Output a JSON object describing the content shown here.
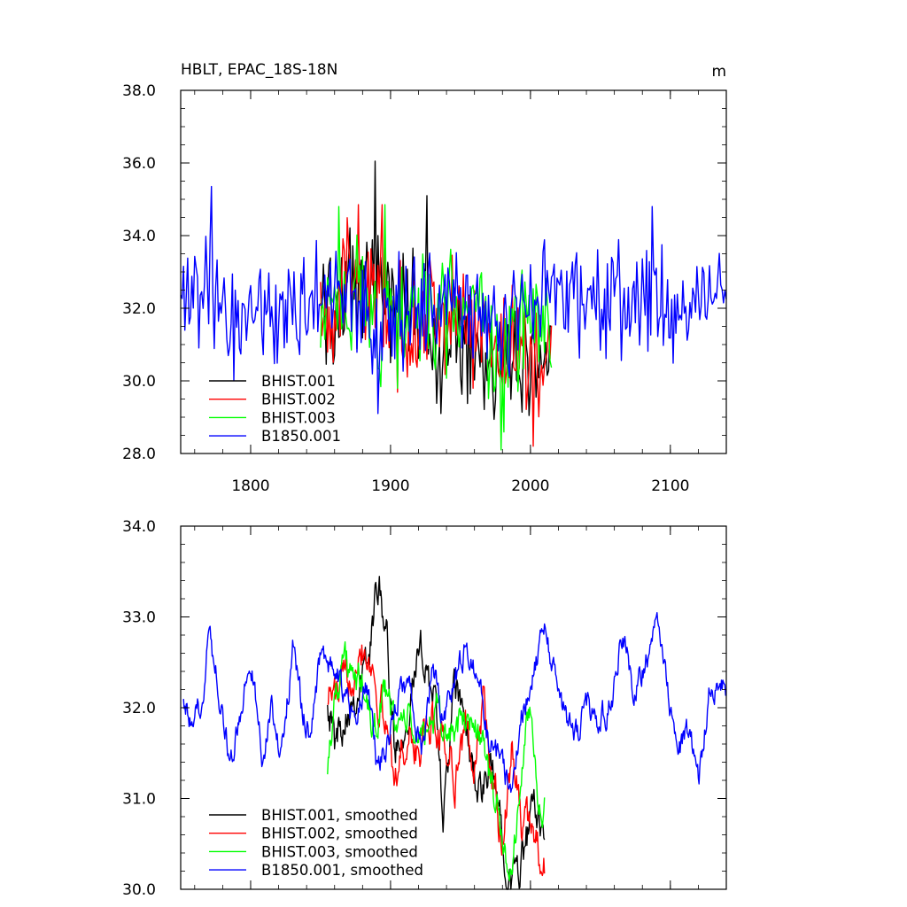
{
  "chart_data": [
    {
      "type": "line",
      "title": "HBLT, EPAC_18S-18N",
      "units": "m",
      "xlim": [
        1750,
        2140
      ],
      "ylim": [
        28,
        38
      ],
      "yticks": [
        "28.0",
        "30.0",
        "32.0",
        "34.0",
        "36.0",
        "38.0"
      ],
      "xticks": [
        "1800",
        "1900",
        "2000",
        "2100"
      ],
      "legend_position": "bottom-left",
      "series": [
        {
          "name": "BHIST.001",
          "color": "#000000",
          "x_start": 1850,
          "x_end": 2015,
          "anchors_x": [
            1850,
            1860,
            1870,
            1880,
            1888,
            1895,
            1905,
            1915,
            1925,
            1935,
            1945,
            1955,
            1965,
            1975,
            1985,
            1995,
            2005,
            2015
          ],
          "anchors_y": [
            32.2,
            32.0,
            32.4,
            32.6,
            33.2,
            32.5,
            31.8,
            31.9,
            32.2,
            30.5,
            31.6,
            31.2,
            31.0,
            30.6,
            30.0,
            30.5,
            30.3,
            30.9
          ],
          "amplitude": 1.3,
          "spikes": [
            [
              1889,
              36.05
            ],
            [
              1926,
              35.1
            ],
            [
              1936,
              29.1
            ]
          ]
        },
        {
          "name": "BHIST.002",
          "color": "#ff0000",
          "x_start": 1850,
          "x_end": 2015,
          "anchors_x": [
            1850,
            1860,
            1870,
            1880,
            1890,
            1900,
            1910,
            1920,
            1930,
            1940,
            1950,
            1960,
            1970,
            1980,
            1990,
            2000,
            2010,
            2015
          ],
          "anchors_y": [
            32.0,
            32.4,
            32.8,
            32.6,
            32.3,
            31.6,
            31.3,
            31.8,
            32.0,
            31.5,
            31.4,
            31.8,
            31.6,
            30.8,
            30.9,
            30.8,
            30.6,
            30.5
          ],
          "amplitude": 1.3,
          "spikes": [
            [
              1877,
              34.85
            ],
            [
              1894,
              34.85
            ],
            [
              2002,
              28.2
            ]
          ]
        },
        {
          "name": "BHIST.003",
          "color": "#00ff00",
          "x_start": 1850,
          "x_end": 2015,
          "anchors_x": [
            1850,
            1860,
            1870,
            1880,
            1890,
            1900,
            1910,
            1920,
            1930,
            1940,
            1950,
            1960,
            1970,
            1980,
            1990,
            2000,
            2010,
            2015
          ],
          "anchors_y": [
            31.5,
            32.3,
            32.5,
            32.3,
            31.6,
            31.8,
            31.6,
            31.9,
            31.7,
            31.8,
            31.6,
            31.9,
            31.3,
            30.2,
            31.2,
            32.0,
            31.2,
            31.0
          ],
          "amplitude": 1.3,
          "spikes": [
            [
              1863,
              34.8
            ],
            [
              1896,
              34.85
            ],
            [
              1979,
              28.1
            ]
          ]
        },
        {
          "name": "B1850.001",
          "color": "#0000ff",
          "x_start": 1750,
          "x_end": 2140,
          "anchors_x": [
            1750,
            1770,
            1790,
            1810,
            1830,
            1850,
            1870,
            1890,
            1910,
            1930,
            1950,
            1970,
            1990,
            2010,
            2030,
            2050,
            2070,
            2090,
            2110,
            2130,
            2140
          ],
          "anchors_y": [
            32.2,
            32.5,
            31.6,
            32.0,
            31.8,
            32.6,
            32.5,
            31.6,
            32.0,
            31.9,
            32.4,
            31.5,
            31.7,
            32.5,
            32.5,
            31.9,
            32.4,
            32.6,
            31.8,
            32.2,
            32.1
          ],
          "amplitude": 1.2,
          "spikes": [
            [
              1772,
              35.35
            ],
            [
              2087,
              34.8
            ],
            [
              1891,
              29.1
            ]
          ]
        }
      ]
    },
    {
      "type": "line",
      "xlim": [
        1750,
        2140
      ],
      "ylim": [
        30,
        34
      ],
      "yticks": [
        "30.0",
        "31.0",
        "32.0",
        "33.0",
        "34.0"
      ],
      "legend_position": "bottom-left",
      "series": [
        {
          "name": "BHIST.001, smoothed",
          "color": "#000000",
          "x_start": 1855,
          "x_end": 2010,
          "anchors_x": [
            1855,
            1860,
            1870,
            1880,
            1885,
            1892,
            1897,
            1903,
            1910,
            1918,
            1925,
            1932,
            1938,
            1945,
            1952,
            1958,
            1965,
            1972,
            1980,
            1987,
            1995,
            2002,
            2010
          ],
          "anchors_y": [
            32.2,
            31.6,
            32.1,
            32.3,
            32.6,
            33.55,
            32.8,
            31.5,
            31.9,
            32.4,
            32.6,
            32.0,
            30.8,
            32.1,
            32.0,
            31.4,
            31.0,
            31.3,
            30.7,
            30.05,
            30.4,
            30.8,
            30.8
          ],
          "amplitude": 0.18
        },
        {
          "name": "BHIST.002, smoothed",
          "color": "#ff0000",
          "x_start": 1855,
          "x_end": 2010,
          "anchors_x": [
            1855,
            1862,
            1870,
            1878,
            1885,
            1892,
            1898,
            1905,
            1912,
            1920,
            1930,
            1938,
            1946,
            1953,
            1960,
            1966,
            1972,
            1980,
            1987,
            1995,
            2002,
            2010
          ],
          "anchors_y": [
            32.2,
            32.1,
            32.3,
            32.8,
            32.6,
            32.1,
            31.7,
            31.3,
            31.7,
            31.5,
            31.8,
            31.7,
            31.3,
            31.7,
            31.4,
            32.1,
            31.2,
            30.6,
            31.5,
            30.6,
            30.7,
            30.3
          ],
          "amplitude": 0.18
        },
        {
          "name": "BHIST.003, smoothed",
          "color": "#00ff00",
          "x_start": 1855,
          "x_end": 2010,
          "anchors_x": [
            1855,
            1860,
            1866,
            1874,
            1880,
            1887,
            1895,
            1903,
            1912,
            1920,
            1930,
            1940,
            1950,
            1958,
            1966,
            1974,
            1980,
            1986,
            1993,
            2000,
            2006,
            2010
          ],
          "anchors_y": [
            31.4,
            32.1,
            32.6,
            32.2,
            32.3,
            31.7,
            32.2,
            31.8,
            31.9,
            31.6,
            31.9,
            31.7,
            31.8,
            31.9,
            31.6,
            31.0,
            30.6,
            30.1,
            31.2,
            32.0,
            31.0,
            30.9
          ],
          "amplitude": 0.15
        },
        {
          "name": "B1850.001, smoothed",
          "color": "#0000ff",
          "x_start": 1752,
          "x_end": 2140,
          "anchors_x": [
            1752,
            1758,
            1764,
            1770,
            1776,
            1784,
            1792,
            1800,
            1808,
            1815,
            1822,
            1830,
            1836,
            1842,
            1850,
            1858,
            1866,
            1874,
            1882,
            1890,
            1898,
            1906,
            1914,
            1922,
            1930,
            1938,
            1946,
            1954,
            1962,
            1970,
            1978,
            1986,
            1994,
            2002,
            2010,
            2018,
            2026,
            2034,
            2042,
            2050,
            2058,
            2066,
            2074,
            2082,
            2090,
            2098,
            2106,
            2114,
            2120,
            2128,
            2134,
            2140
          ],
          "anchors_y": [
            32.2,
            31.7,
            32.0,
            32.8,
            32.4,
            31.5,
            31.8,
            32.6,
            31.5,
            32.0,
            31.4,
            32.7,
            32.0,
            31.7,
            32.6,
            32.4,
            32.2,
            31.8,
            32.3,
            31.4,
            31.6,
            32.2,
            32.3,
            31.5,
            32.5,
            31.9,
            32.3,
            32.7,
            32.4,
            31.6,
            31.4,
            31.2,
            32.0,
            32.4,
            32.8,
            32.3,
            31.9,
            31.8,
            32.0,
            31.8,
            32.1,
            32.8,
            32.1,
            32.5,
            32.9,
            32.2,
            31.6,
            31.7,
            31.2,
            32.2,
            32.3,
            32.1
          ],
          "amplitude": 0.12
        }
      ]
    }
  ]
}
